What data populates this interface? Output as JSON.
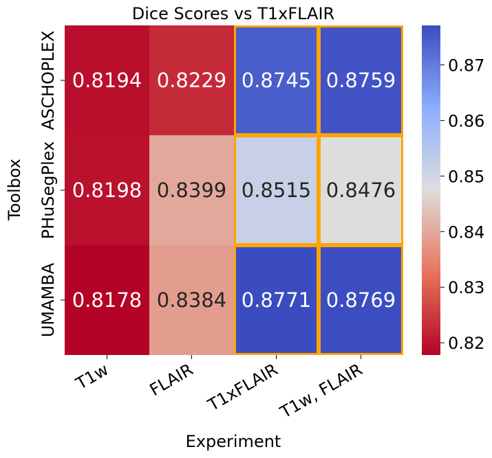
{
  "chart_data": {
    "type": "heatmap",
    "title": "Dice Scores vs T1xFLAIR",
    "xlabel": "Experiment",
    "ylabel": "Toolbox",
    "x_categories": [
      "T1w",
      "FLAIR",
      "T1xFLAIR",
      "T1w, FLAIR"
    ],
    "y_categories": [
      "ASCHOPLEX",
      "PHuSegPlex",
      "UMAMBA"
    ],
    "values": [
      [
        0.8194,
        0.8229,
        0.8745,
        0.8759
      ],
      [
        0.8198,
        0.8399,
        0.8515,
        0.8476
      ],
      [
        0.8178,
        0.8384,
        0.8771,
        0.8769
      ]
    ],
    "value_labels": [
      [
        "0.8194",
        "0.8229",
        "0.8745",
        "0.8759"
      ],
      [
        "0.8198",
        "0.8399",
        "0.8515",
        "0.8476"
      ],
      [
        "0.8178",
        "0.8384",
        "0.8771",
        "0.8769"
      ]
    ],
    "highlighted_columns": [
      "T1xFLAIR",
      "T1w, FLAIR"
    ],
    "highlight_color": "#ffa500",
    "colormap": "coolwarm_r",
    "colorbar": {
      "range": [
        0.8178,
        0.8771
      ],
      "ticks": [
        0.82,
        0.83,
        0.84,
        0.85,
        0.86,
        0.87
      ],
      "tick_labels": [
        "0.82",
        "0.83",
        "0.84",
        "0.85",
        "0.86",
        "0.87"
      ]
    },
    "grid": false
  }
}
